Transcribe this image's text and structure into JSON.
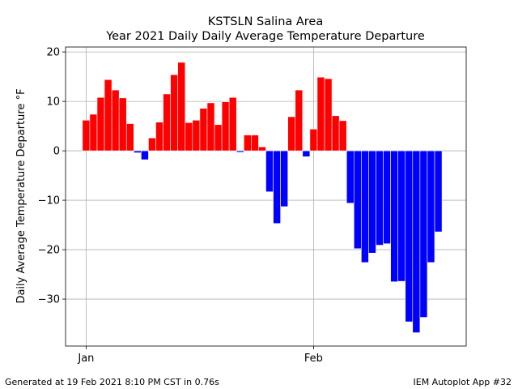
{
  "chart_data": {
    "type": "bar",
    "title": "KSTSLN Salina Area",
    "subtitle": "Year 2021 Daily Daily Average Temperature Departure",
    "xlabel": "",
    "ylabel": "Daily Average Temperature Departure °F",
    "ylim": [
      -39.5,
      21
    ],
    "xlim": [
      -2.8,
      51.8
    ],
    "yticks": [
      20,
      10,
      0,
      -10,
      -20,
      -30
    ],
    "ytick_labels": [
      "20",
      "10",
      "0",
      "−10",
      "−20",
      "−30"
    ],
    "xticks": [
      0,
      31
    ],
    "xtick_labels": [
      "Jan",
      "Feb"
    ],
    "grid": true,
    "positive_color": "#ff0000",
    "negative_color": "#0000ff",
    "values": [
      6.2,
      7.4,
      10.8,
      14.4,
      12.3,
      10.7,
      5.5,
      -0.4,
      -1.8,
      2.6,
      5.8,
      11.5,
      15.4,
      17.9,
      5.7,
      6.2,
      8.6,
      9.7,
      5.3,
      9.9,
      10.8,
      -0.3,
      3.2,
      3.2,
      0.8,
      -8.3,
      -14.7,
      -11.3,
      6.9,
      12.3,
      -1.2,
      4.4,
      14.9,
      14.6,
      7.1,
      6.1,
      -10.6,
      -19.8,
      -22.6,
      -20.7,
      -19.1,
      -18.8,
      -26.5,
      -26.4,
      -34.6,
      -36.8,
      -33.7,
      -22.6,
      -16.4
    ]
  },
  "footer": {
    "generated": "Generated at 19 Feb 2021 8:10 PM CST in 0.76s",
    "app": "IEM Autoplot App #32"
  }
}
